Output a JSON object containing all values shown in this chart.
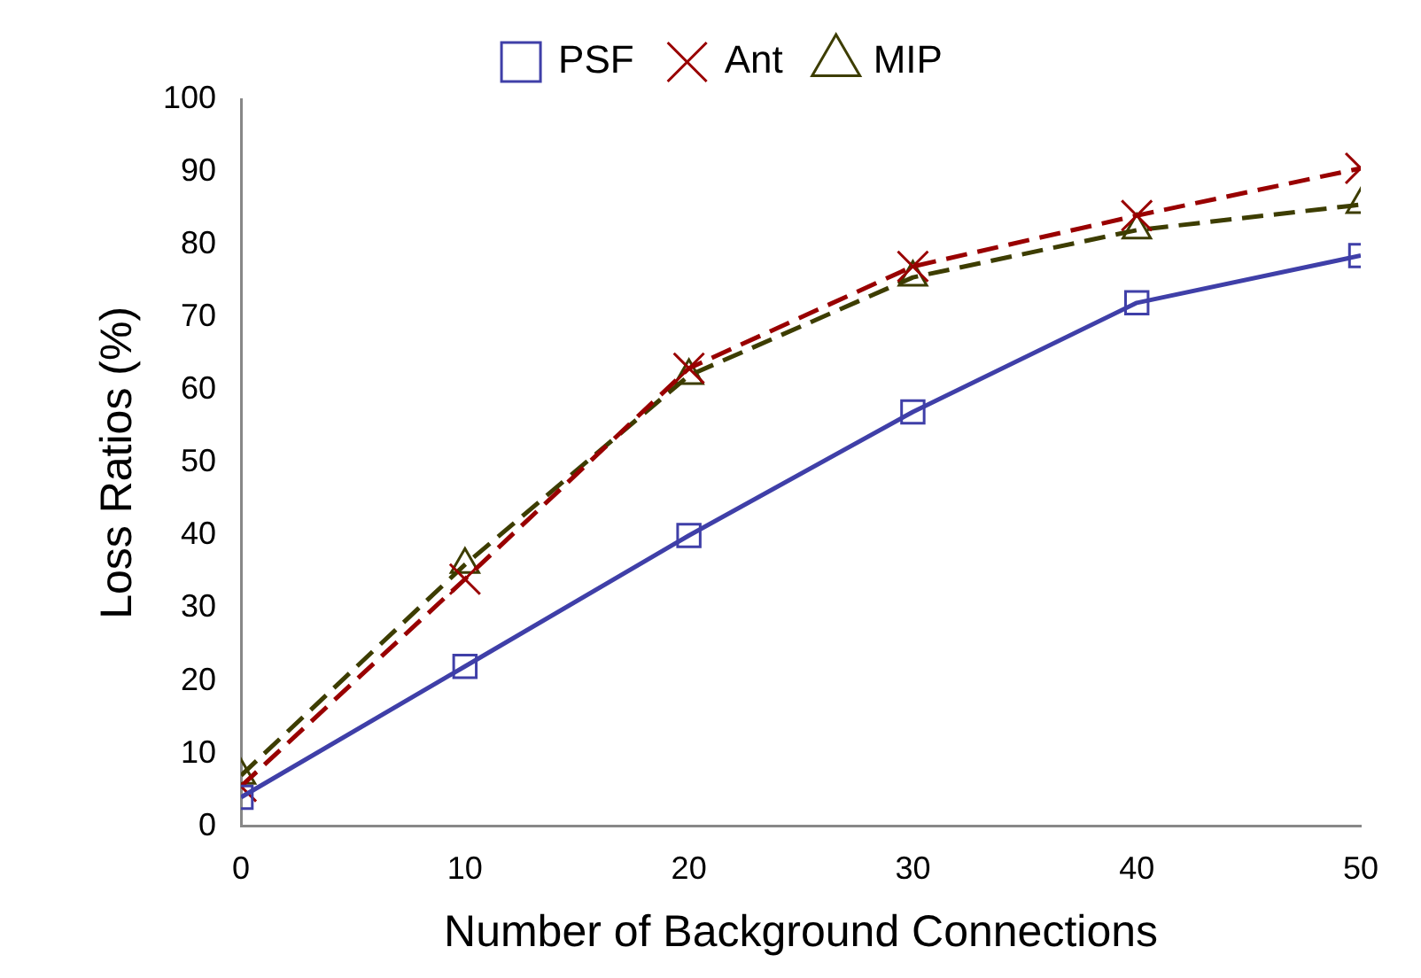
{
  "chart_data": {
    "type": "line",
    "xlabel": "Number of Background Connections",
    "ylabel": "Loss Ratios (%)",
    "x": [
      0,
      10,
      20,
      30,
      40,
      50
    ],
    "series": [
      {
        "name": "PSF",
        "color": "#3f3fa8",
        "marker": "square",
        "line_style": "solid",
        "values": [
          4,
          22,
          40,
          57,
          72,
          78.5
        ]
      },
      {
        "name": "Ant",
        "color": "#990000",
        "marker": "cross",
        "line_style": "dashed",
        "values": [
          5.5,
          34,
          63,
          77,
          84,
          90.5
        ]
      },
      {
        "name": "MIP",
        "color": "#3d3d00",
        "marker": "triangle",
        "line_style": "dashed",
        "values": [
          7,
          36,
          62,
          75.5,
          82,
          85.5
        ]
      }
    ],
    "xlim": [
      0,
      50
    ],
    "xticks": [
      0,
      10,
      20,
      30,
      40,
      50
    ],
    "ylim": [
      0,
      100
    ],
    "yticks": [
      0,
      10,
      20,
      30,
      40,
      50,
      60,
      70,
      80,
      90,
      100
    ],
    "grid": false,
    "legend": "top"
  }
}
